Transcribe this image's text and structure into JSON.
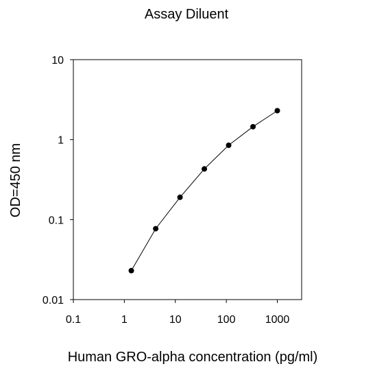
{
  "chart_data": {
    "type": "scatter",
    "title": "Assay Diluent",
    "xlabel": "Human GRO-alpha concentration (pg/ml)",
    "ylabel": "OD=450 nm",
    "x_scale": "log",
    "y_scale": "log",
    "xlim": [
      0.1,
      3000
    ],
    "ylim": [
      0.01,
      10
    ],
    "x_ticks": [
      0.1,
      1,
      10,
      100,
      1000
    ],
    "x_tick_labels": [
      "0.1",
      "1",
      "10",
      "100",
      "1000"
    ],
    "y_ticks": [
      0.01,
      0.1,
      1,
      10
    ],
    "y_tick_labels": [
      "0.01",
      "0.1",
      "1",
      "10"
    ],
    "grid": false,
    "legend": "none",
    "series": [
      {
        "x": [
          1.37,
          4.12,
          12.35,
          37.04,
          111.1,
          333.3,
          1000
        ],
        "y": [
          0.023,
          0.077,
          0.19,
          0.43,
          0.85,
          1.45,
          2.3
        ],
        "markers": true,
        "line": true,
        "color": "#000000"
      }
    ]
  }
}
